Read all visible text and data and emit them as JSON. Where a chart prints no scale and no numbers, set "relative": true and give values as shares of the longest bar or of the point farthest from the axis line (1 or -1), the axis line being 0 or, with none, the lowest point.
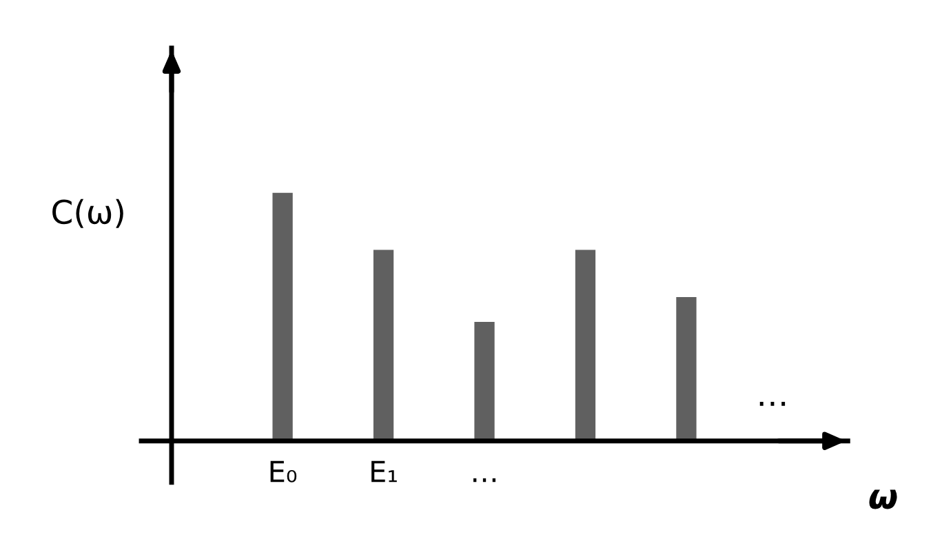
{
  "chart_data": {
    "type": "bar",
    "relative": true,
    "categories": [
      "E₀",
      "E₁",
      "…",
      null,
      null
    ],
    "values": [
      1,
      0.77,
      0.48,
      0.77,
      0.58
    ],
    "color": "#606060",
    "ylabel": "C(ω)",
    "xlabel": "ω",
    "annotations": [
      "…"
    ],
    "grid": false,
    "legend": false
  }
}
